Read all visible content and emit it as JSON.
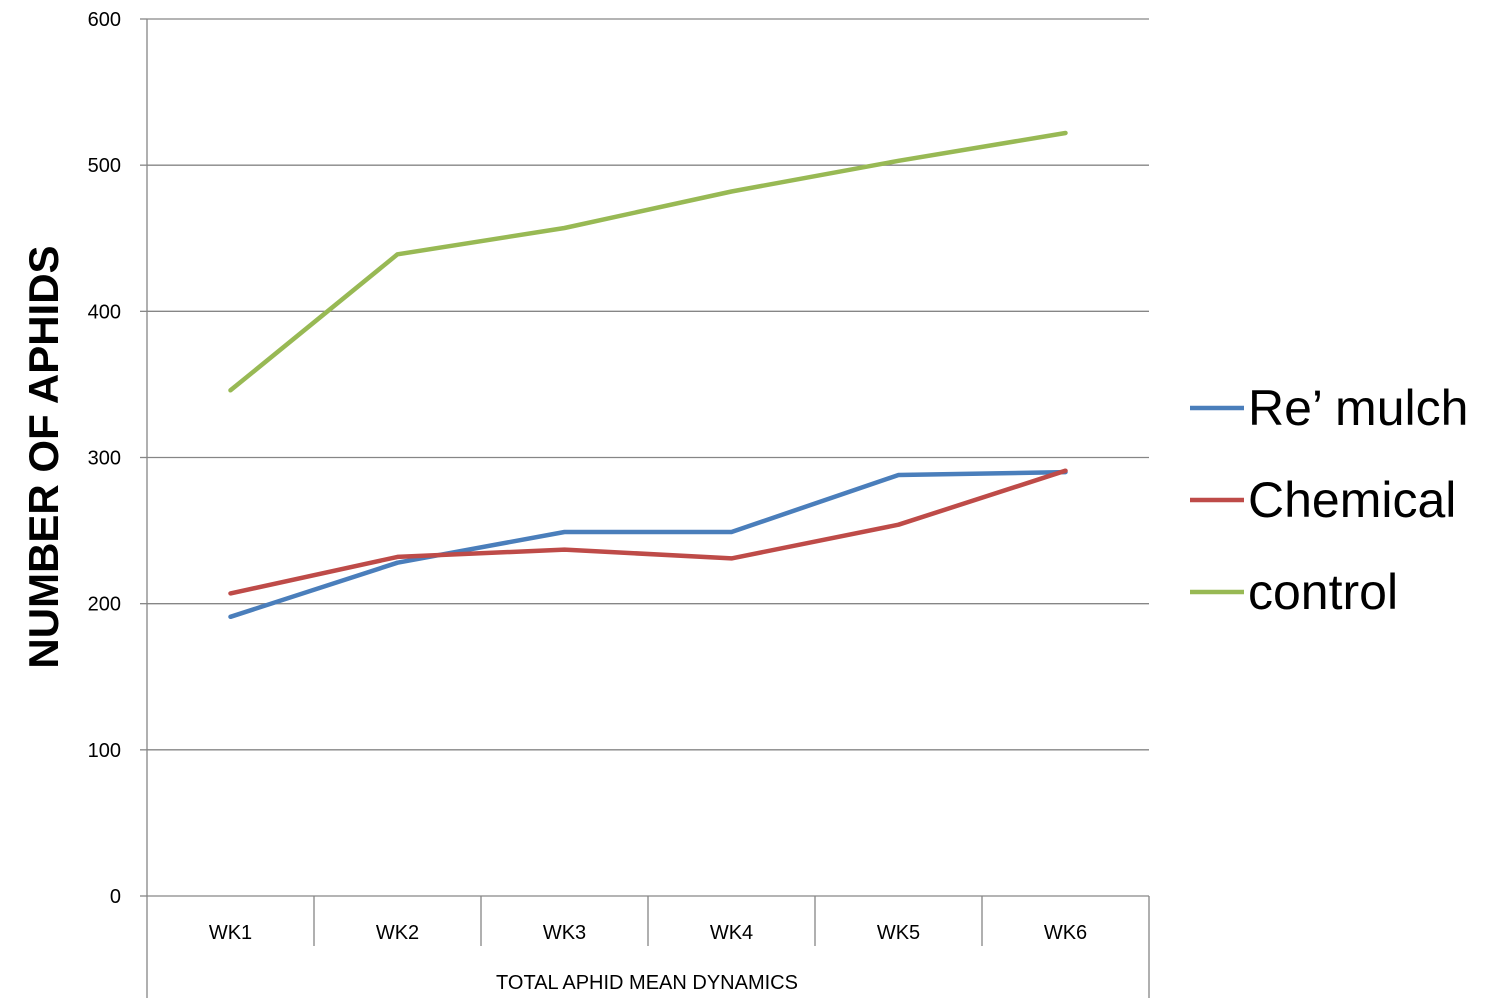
{
  "chart_data": {
    "type": "line",
    "categories": [
      "WK1",
      "WK2",
      "WK3",
      "WK4",
      "WK5",
      "WK6"
    ],
    "series": [
      {
        "name": "Re’ mulch",
        "color": "#4a7ebb",
        "values": [
          191,
          228,
          249,
          249,
          288,
          290
        ]
      },
      {
        "name": "Chemical",
        "color": "#be4b48",
        "values": [
          207,
          232,
          237,
          231,
          254,
          291
        ]
      },
      {
        "name": "control",
        "color": "#98b954",
        "values": [
          346,
          439,
          457,
          482,
          503,
          522
        ]
      }
    ],
    "xlabel": "TOTAL APHID MEAN DYNAMICS",
    "ylabel": "NUMBER OF APHIDS",
    "ylim": [
      0,
      600
    ],
    "yticks": [
      "0",
      "100",
      "200",
      "300",
      "400",
      "500",
      "600"
    ],
    "grid": true,
    "legend_position": "right"
  }
}
